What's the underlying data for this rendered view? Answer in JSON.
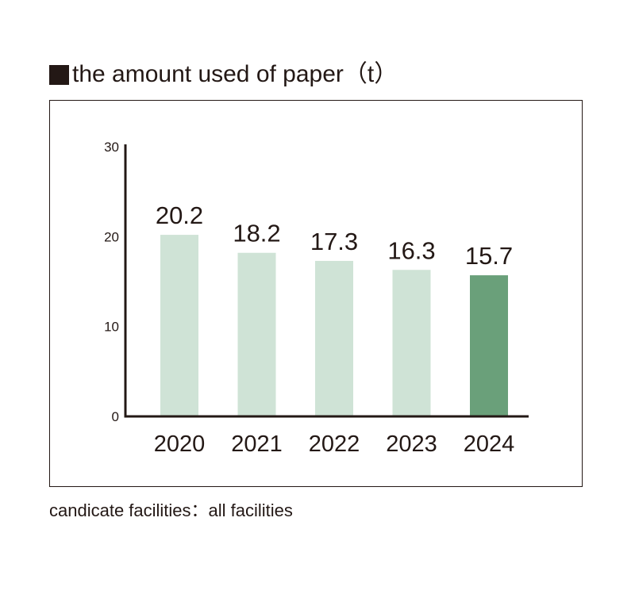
{
  "header": {
    "title": "the amount used of paper（t）"
  },
  "footer": {
    "note": "candicate facilities：all facilities"
  },
  "colors": {
    "bar_past": "#cfe3d6",
    "bar_latest": "#6aa07a",
    "axis": "#231815",
    "text": "#231815"
  },
  "chart_data": {
    "type": "bar",
    "title": "the amount used of paper（t）",
    "xlabel": "",
    "ylabel": "",
    "categories": [
      "2020",
      "2021",
      "2022",
      "2023",
      "2024"
    ],
    "values": [
      20.2,
      18.2,
      17.3,
      16.3,
      15.7
    ],
    "data_labels": [
      "20.2",
      "18.2",
      "17.3",
      "16.3",
      "15.7"
    ],
    "ylim": [
      0,
      30
    ],
    "yticks": [
      0,
      10,
      20,
      30
    ],
    "highlight_index": 4,
    "grid": false,
    "legend": "none"
  }
}
